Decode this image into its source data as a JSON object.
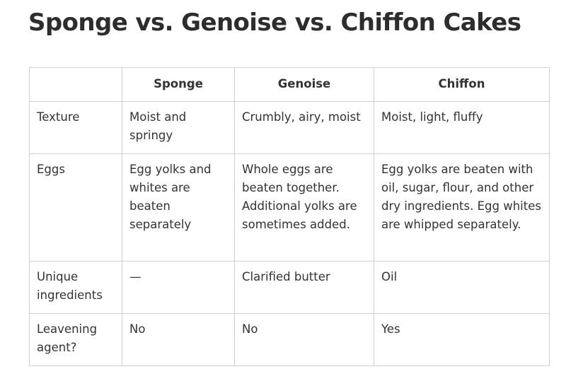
{
  "title": "Sponge vs. Genoise vs. Chiffon Cakes",
  "table": {
    "headers": [
      "",
      "Sponge",
      "Genoise",
      "Chiffon"
    ],
    "rows": [
      {
        "label": "Texture",
        "sponge": "Moist and springy",
        "genoise": "Crumbly, airy, moist",
        "chiffon": "Moist, light, fluffy"
      },
      {
        "label": "Eggs",
        "sponge": "Egg yolks and whites are beaten separately",
        "genoise": "Whole eggs are beaten together. Additional yolks are sometimes added.",
        "chiffon": "Egg yolks are beaten with oil, sugar, flour, and other dry ingredients. Egg whites are whipped separately."
      },
      {
        "label": "Unique ingredients",
        "sponge": "—",
        "genoise": "Clarified butter",
        "chiffon": "Oil"
      },
      {
        "label": "Leavening agent?",
        "sponge": "No",
        "genoise": "No",
        "chiffon": "Yes"
      }
    ]
  }
}
